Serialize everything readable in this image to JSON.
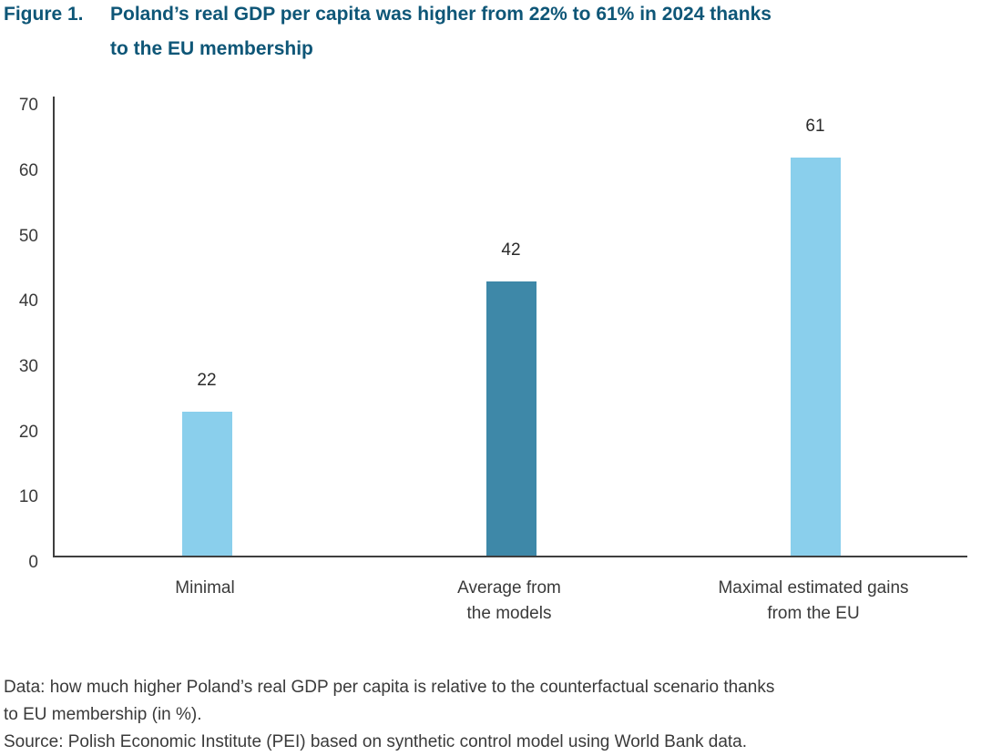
{
  "header": {
    "figure_label": "Figure 1.",
    "title": "Poland’s real GDP per capita was higher from 22% to 61% in 2024 thanks\nto the EU membership"
  },
  "chart_data": {
    "type": "bar",
    "title": "Poland’s real GDP per capita was higher from 22% to 61% in 2024 thanks to the EU membership",
    "categories": [
      "Minimal",
      "Average from\nthe models",
      "Maximal estimated gains\nfrom the EU"
    ],
    "values": [
      22,
      42,
      61
    ],
    "value_labels": [
      "22",
      "42",
      "61"
    ],
    "bar_colors": [
      "#8ACFEC",
      "#3E88A8",
      "#8ACFEC"
    ],
    "xlabel": "",
    "ylabel": "",
    "ylim": [
      0,
      70
    ],
    "yticks": [
      0,
      10,
      20,
      30,
      40,
      50,
      60,
      70
    ],
    "grid": false,
    "legend": false
  },
  "notes": {
    "data_note": "Data: how much higher Poland’s real GDP per capita is relative to the counterfactual scenario thanks\nto EU membership (in %).",
    "source_note": "Source: Polish Economic Institute (PEI) based on synthetic control model using World Bank data."
  },
  "colors": {
    "title_text": "#0E5677",
    "light_blue": "#8ACFEC",
    "dark_blue": "#3E88A8",
    "axis_line": "#3F3F3F",
    "tick_text": "#3A3A3A",
    "value_text": "#2B2B2B",
    "note_text": "#3A3A3A"
  }
}
